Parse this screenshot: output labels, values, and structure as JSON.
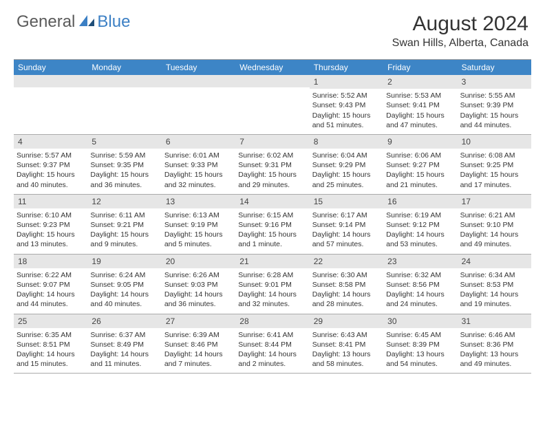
{
  "logo": {
    "text1": "General",
    "text2": "Blue"
  },
  "title": "August 2024",
  "location": "Swan Hills, Alberta, Canada",
  "header_bg": "#3d85c6",
  "day_headers": [
    "Sunday",
    "Monday",
    "Tuesday",
    "Wednesday",
    "Thursday",
    "Friday",
    "Saturday"
  ],
  "weeks": [
    [
      {
        "n": "",
        "lines": []
      },
      {
        "n": "",
        "lines": []
      },
      {
        "n": "",
        "lines": []
      },
      {
        "n": "",
        "lines": []
      },
      {
        "n": "1",
        "lines": [
          "Sunrise: 5:52 AM",
          "Sunset: 9:43 PM",
          "Daylight: 15 hours",
          "and 51 minutes."
        ]
      },
      {
        "n": "2",
        "lines": [
          "Sunrise: 5:53 AM",
          "Sunset: 9:41 PM",
          "Daylight: 15 hours",
          "and 47 minutes."
        ]
      },
      {
        "n": "3",
        "lines": [
          "Sunrise: 5:55 AM",
          "Sunset: 9:39 PM",
          "Daylight: 15 hours",
          "and 44 minutes."
        ]
      }
    ],
    [
      {
        "n": "4",
        "lines": [
          "Sunrise: 5:57 AM",
          "Sunset: 9:37 PM",
          "Daylight: 15 hours",
          "and 40 minutes."
        ]
      },
      {
        "n": "5",
        "lines": [
          "Sunrise: 5:59 AM",
          "Sunset: 9:35 PM",
          "Daylight: 15 hours",
          "and 36 minutes."
        ]
      },
      {
        "n": "6",
        "lines": [
          "Sunrise: 6:01 AM",
          "Sunset: 9:33 PM",
          "Daylight: 15 hours",
          "and 32 minutes."
        ]
      },
      {
        "n": "7",
        "lines": [
          "Sunrise: 6:02 AM",
          "Sunset: 9:31 PM",
          "Daylight: 15 hours",
          "and 29 minutes."
        ]
      },
      {
        "n": "8",
        "lines": [
          "Sunrise: 6:04 AM",
          "Sunset: 9:29 PM",
          "Daylight: 15 hours",
          "and 25 minutes."
        ]
      },
      {
        "n": "9",
        "lines": [
          "Sunrise: 6:06 AM",
          "Sunset: 9:27 PM",
          "Daylight: 15 hours",
          "and 21 minutes."
        ]
      },
      {
        "n": "10",
        "lines": [
          "Sunrise: 6:08 AM",
          "Sunset: 9:25 PM",
          "Daylight: 15 hours",
          "and 17 minutes."
        ]
      }
    ],
    [
      {
        "n": "11",
        "lines": [
          "Sunrise: 6:10 AM",
          "Sunset: 9:23 PM",
          "Daylight: 15 hours",
          "and 13 minutes."
        ]
      },
      {
        "n": "12",
        "lines": [
          "Sunrise: 6:11 AM",
          "Sunset: 9:21 PM",
          "Daylight: 15 hours",
          "and 9 minutes."
        ]
      },
      {
        "n": "13",
        "lines": [
          "Sunrise: 6:13 AM",
          "Sunset: 9:19 PM",
          "Daylight: 15 hours",
          "and 5 minutes."
        ]
      },
      {
        "n": "14",
        "lines": [
          "Sunrise: 6:15 AM",
          "Sunset: 9:16 PM",
          "Daylight: 15 hours",
          "and 1 minute."
        ]
      },
      {
        "n": "15",
        "lines": [
          "Sunrise: 6:17 AM",
          "Sunset: 9:14 PM",
          "Daylight: 14 hours",
          "and 57 minutes."
        ]
      },
      {
        "n": "16",
        "lines": [
          "Sunrise: 6:19 AM",
          "Sunset: 9:12 PM",
          "Daylight: 14 hours",
          "and 53 minutes."
        ]
      },
      {
        "n": "17",
        "lines": [
          "Sunrise: 6:21 AM",
          "Sunset: 9:10 PM",
          "Daylight: 14 hours",
          "and 49 minutes."
        ]
      }
    ],
    [
      {
        "n": "18",
        "lines": [
          "Sunrise: 6:22 AM",
          "Sunset: 9:07 PM",
          "Daylight: 14 hours",
          "and 44 minutes."
        ]
      },
      {
        "n": "19",
        "lines": [
          "Sunrise: 6:24 AM",
          "Sunset: 9:05 PM",
          "Daylight: 14 hours",
          "and 40 minutes."
        ]
      },
      {
        "n": "20",
        "lines": [
          "Sunrise: 6:26 AM",
          "Sunset: 9:03 PM",
          "Daylight: 14 hours",
          "and 36 minutes."
        ]
      },
      {
        "n": "21",
        "lines": [
          "Sunrise: 6:28 AM",
          "Sunset: 9:01 PM",
          "Daylight: 14 hours",
          "and 32 minutes."
        ]
      },
      {
        "n": "22",
        "lines": [
          "Sunrise: 6:30 AM",
          "Sunset: 8:58 PM",
          "Daylight: 14 hours",
          "and 28 minutes."
        ]
      },
      {
        "n": "23",
        "lines": [
          "Sunrise: 6:32 AM",
          "Sunset: 8:56 PM",
          "Daylight: 14 hours",
          "and 24 minutes."
        ]
      },
      {
        "n": "24",
        "lines": [
          "Sunrise: 6:34 AM",
          "Sunset: 8:53 PM",
          "Daylight: 14 hours",
          "and 19 minutes."
        ]
      }
    ],
    [
      {
        "n": "25",
        "lines": [
          "Sunrise: 6:35 AM",
          "Sunset: 8:51 PM",
          "Daylight: 14 hours",
          "and 15 minutes."
        ]
      },
      {
        "n": "26",
        "lines": [
          "Sunrise: 6:37 AM",
          "Sunset: 8:49 PM",
          "Daylight: 14 hours",
          "and 11 minutes."
        ]
      },
      {
        "n": "27",
        "lines": [
          "Sunrise: 6:39 AM",
          "Sunset: 8:46 PM",
          "Daylight: 14 hours",
          "and 7 minutes."
        ]
      },
      {
        "n": "28",
        "lines": [
          "Sunrise: 6:41 AM",
          "Sunset: 8:44 PM",
          "Daylight: 14 hours",
          "and 2 minutes."
        ]
      },
      {
        "n": "29",
        "lines": [
          "Sunrise: 6:43 AM",
          "Sunset: 8:41 PM",
          "Daylight: 13 hours",
          "and 58 minutes."
        ]
      },
      {
        "n": "30",
        "lines": [
          "Sunrise: 6:45 AM",
          "Sunset: 8:39 PM",
          "Daylight: 13 hours",
          "and 54 minutes."
        ]
      },
      {
        "n": "31",
        "lines": [
          "Sunrise: 6:46 AM",
          "Sunset: 8:36 PM",
          "Daylight: 13 hours",
          "and 49 minutes."
        ]
      }
    ]
  ]
}
